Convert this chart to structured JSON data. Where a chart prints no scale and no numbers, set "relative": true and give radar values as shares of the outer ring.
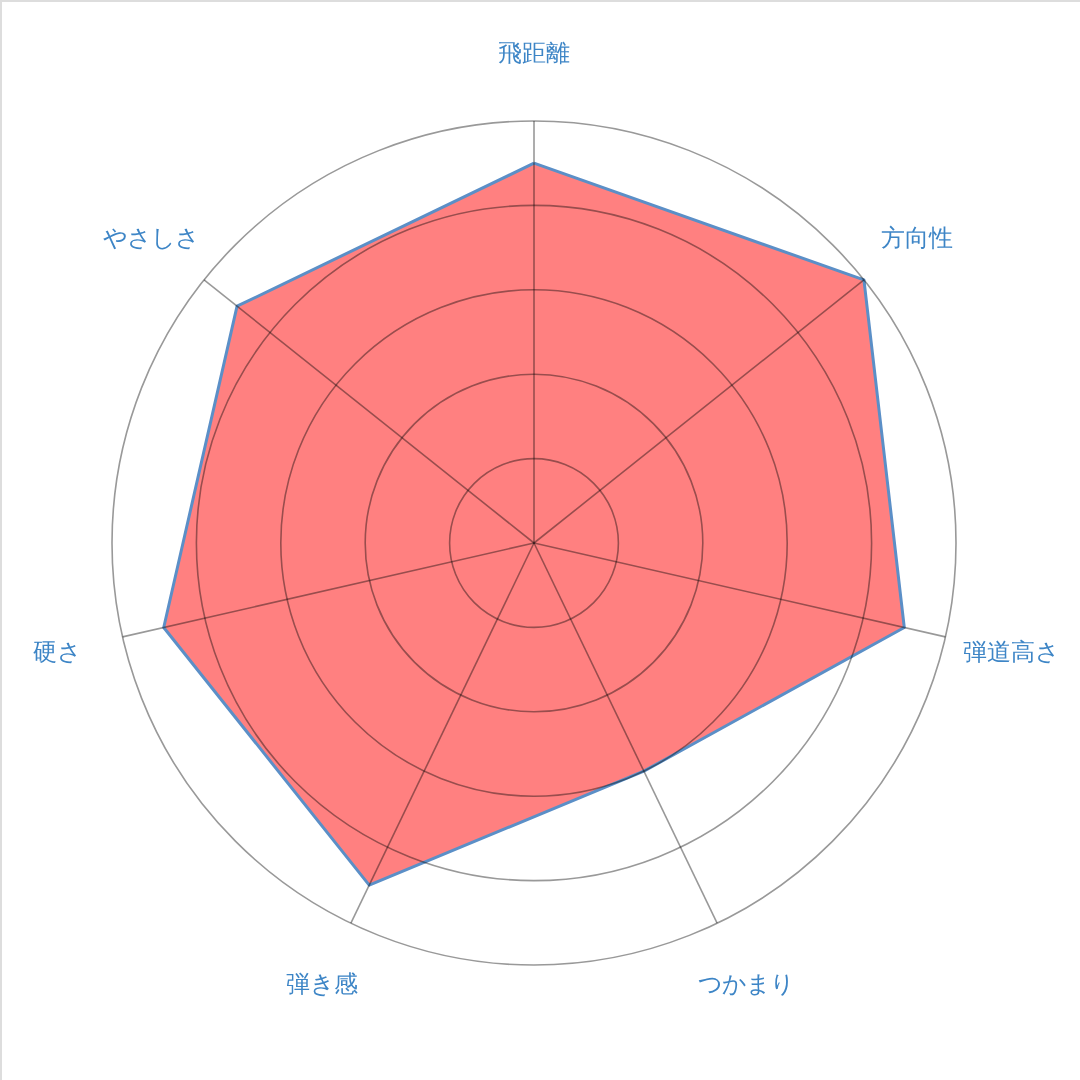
{
  "chart_data": {
    "type": "radar",
    "categories": [
      "飛距離",
      "方向性",
      "弾道高さ",
      "つかまり",
      "弾き感",
      "硬さ",
      "やさしさ"
    ],
    "series": [
      {
        "color": "#ff8080",
        "values": [
          0.9,
          1.0,
          0.9,
          0.6,
          0.9,
          0.9,
          0.9
        ]
      }
    ],
    "relative": true,
    "grid": true
  }
}
